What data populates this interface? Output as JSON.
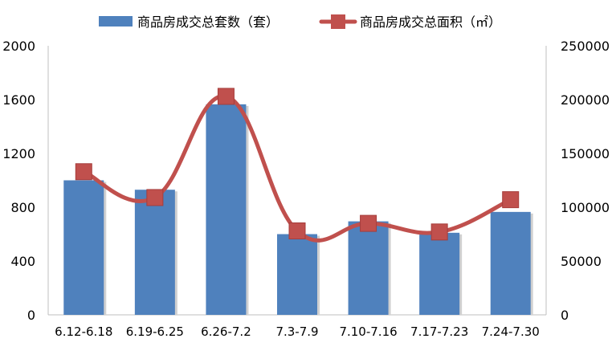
{
  "chart_data": {
    "type": "bar",
    "categories": [
      "6.12-6.18",
      "6.19-6.25",
      "6.26-7.2",
      "7.3-7.9",
      "7.10-7.16",
      "7.17-7.23",
      "7.24-7.30"
    ],
    "series": [
      {
        "name": "商品房成交总套数（套）",
        "type": "bar",
        "axis": "left",
        "color": "#4F81BD",
        "values": [
          1000,
          930,
          1565,
          600,
          695,
          610,
          765
        ]
      },
      {
        "name": "商品房成交总面积（㎡）",
        "type": "line",
        "axis": "right",
        "color": "#C0504D",
        "values": [
          133000,
          109000,
          203000,
          78000,
          85000,
          77000,
          107000
        ]
      }
    ],
    "y_left": {
      "min": 0,
      "max": 2000,
      "ticks": [
        0,
        400,
        800,
        1200,
        1600,
        2000
      ]
    },
    "y_right": {
      "min": 0,
      "max": 250000,
      "ticks": [
        0,
        50000,
        100000,
        150000,
        200000,
        250000
      ]
    },
    "grid": false,
    "legend_position": "top"
  }
}
